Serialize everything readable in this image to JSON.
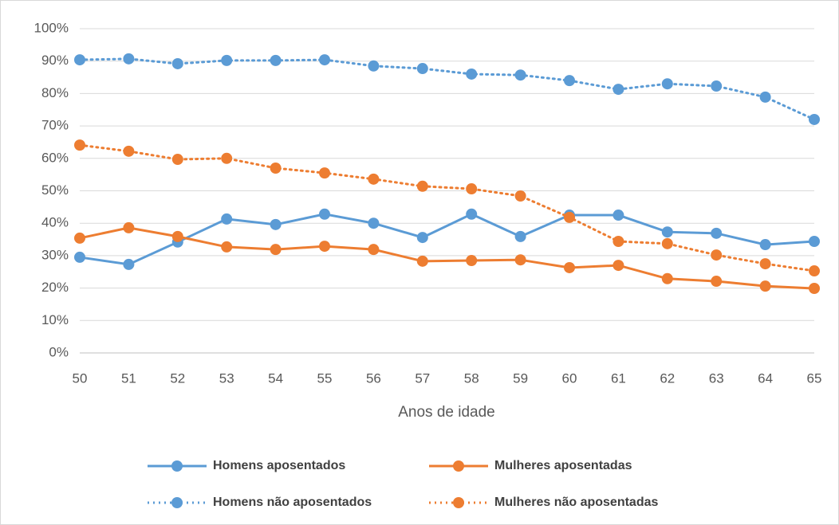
{
  "chart_data": {
    "type": "line",
    "x": [
      50,
      51,
      52,
      53,
      54,
      55,
      56,
      57,
      58,
      59,
      60,
      61,
      62,
      63,
      64,
      65
    ],
    "xlim": [
      50,
      65
    ],
    "xticks": [
      50,
      51,
      52,
      53,
      54,
      55,
      56,
      57,
      58,
      59,
      60,
      61,
      62,
      63,
      64,
      65
    ],
    "x_label": "Anos de idade",
    "ylim": [
      0,
      100
    ],
    "yticks": [
      {
        "value": 0,
        "label": "0%"
      },
      {
        "value": 10,
        "label": "10%"
      },
      {
        "value": 20,
        "label": "20%"
      },
      {
        "value": 30,
        "label": "30%"
      },
      {
        "value": 40,
        "label": "40%"
      },
      {
        "value": 50,
        "label": "50%"
      },
      {
        "value": 60,
        "label": "60%"
      },
      {
        "value": 70,
        "label": "70%"
      },
      {
        "value": 80,
        "label": "80%"
      },
      {
        "value": 90,
        "label": "90%"
      },
      {
        "value": 100,
        "label": "100%"
      }
    ],
    "grid": true,
    "legend": "bottom",
    "series": [
      {
        "name": "Homens aposentados",
        "color": "#5b9bd5",
        "style": "solid",
        "values": [
          29.5,
          27.3,
          34.2,
          41.3,
          39.6,
          42.8,
          40.0,
          35.6,
          42.8,
          35.9,
          42.5,
          42.5,
          37.3,
          36.9,
          33.4,
          34.4
        ]
      },
      {
        "name": "Mulheres aposentadas",
        "color": "#ed7d31",
        "style": "solid",
        "values": [
          35.4,
          38.6,
          35.9,
          32.7,
          31.9,
          32.9,
          31.9,
          28.3,
          28.5,
          28.7,
          26.3,
          27.0,
          22.9,
          22.1,
          20.6,
          19.9
        ]
      },
      {
        "name": "Homens não aposentados",
        "color": "#5b9bd5",
        "style": "dotted",
        "values": [
          90.4,
          90.7,
          89.2,
          90.2,
          90.2,
          90.4,
          88.5,
          87.7,
          86.0,
          85.7,
          84.0,
          81.3,
          83.0,
          82.3,
          78.9,
          72.0
        ]
      },
      {
        "name": "Mulheres não aposentadas",
        "color": "#ed7d31",
        "style": "dotted",
        "values": [
          64.1,
          62.2,
          59.7,
          60.0,
          57.0,
          55.5,
          53.6,
          51.4,
          50.6,
          48.4,
          41.8,
          34.4,
          33.7,
          30.2,
          27.5,
          25.3
        ]
      }
    ]
  }
}
